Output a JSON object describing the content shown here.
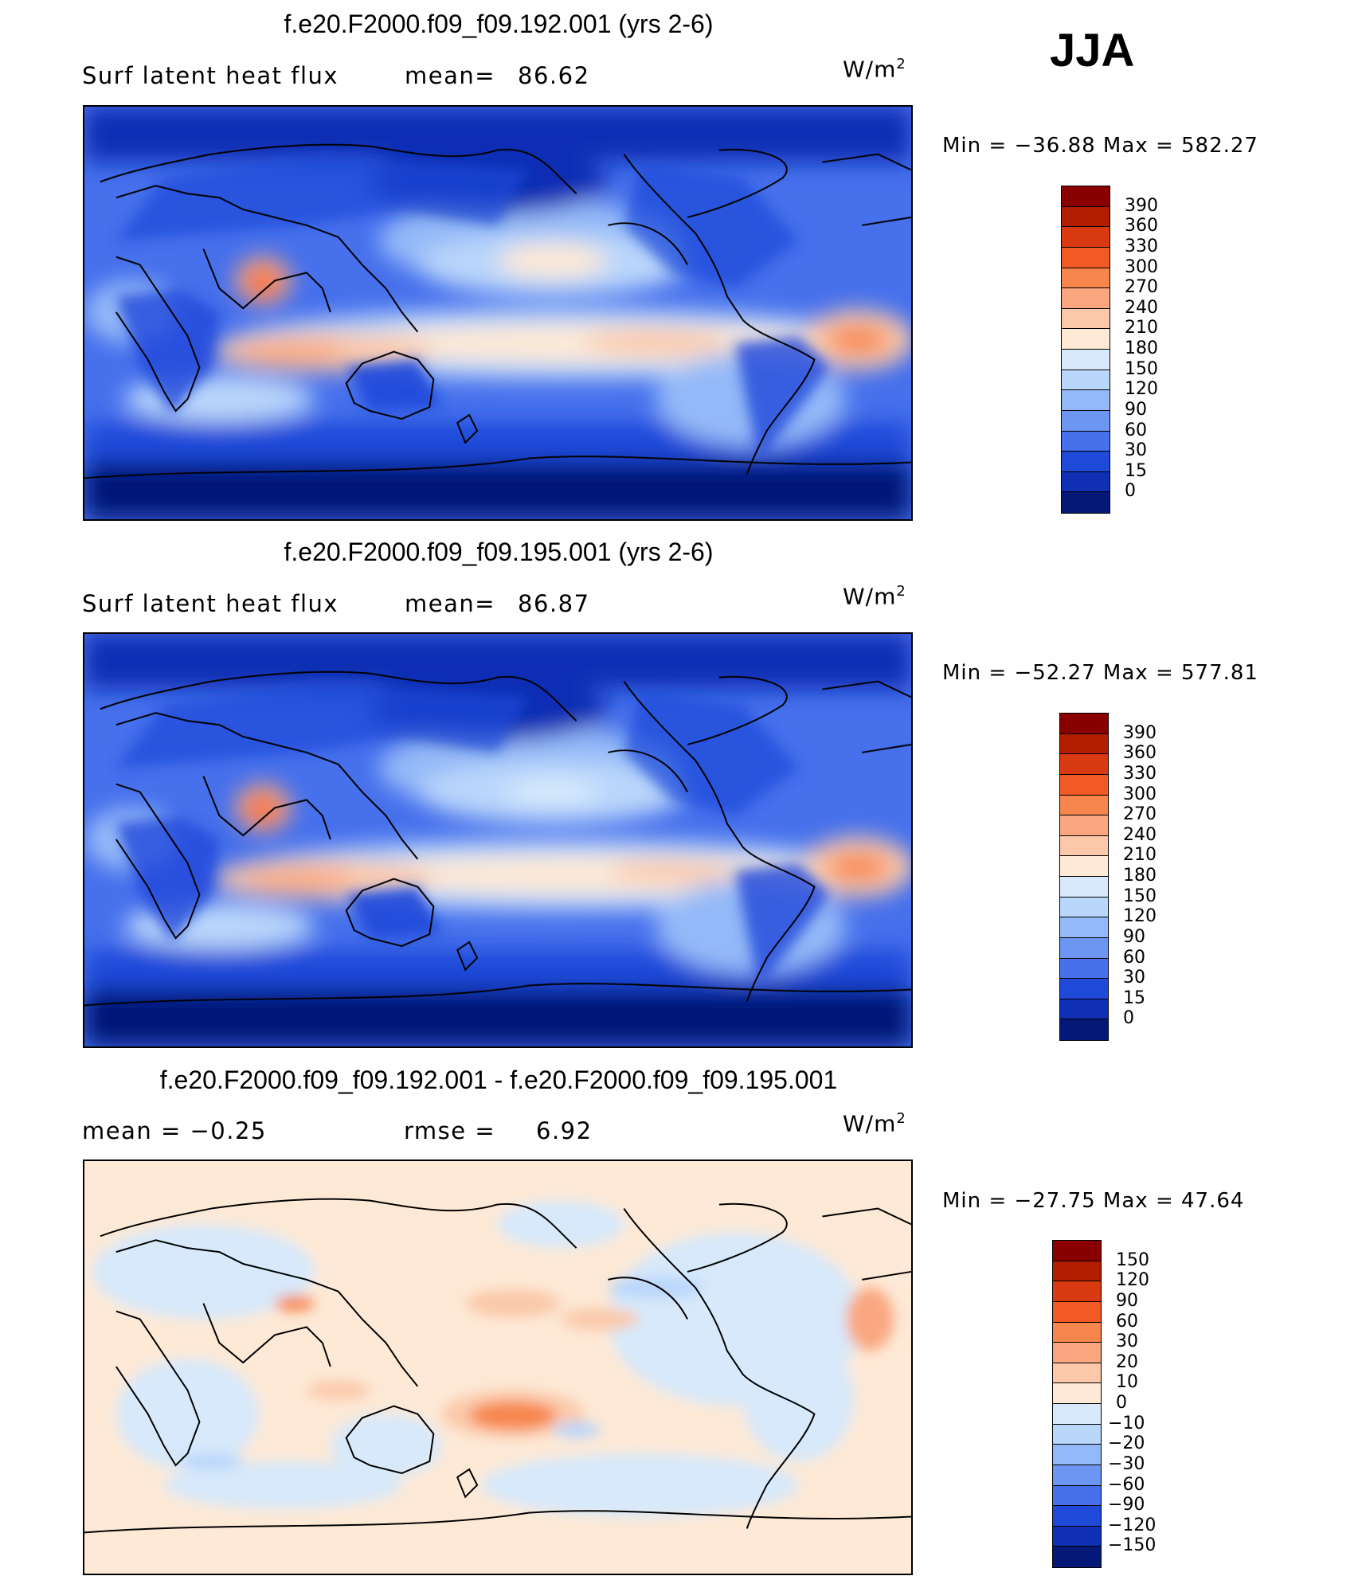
{
  "season": "JJA",
  "panels": [
    {
      "title": "f.e20.F2000.f09_f09.192.001 (yrs 2-6)",
      "left_label": "Surf  latent  heat  flux",
      "stat_label": "mean=",
      "stat_value": "86.62",
      "units_base": "W/m",
      "units_exp": "2",
      "min_label": "Min  =  −36.88  Max  =  582.27",
      "levels": [
        "390",
        "360",
        "330",
        "300",
        "270",
        "240",
        "210",
        "180",
        "150",
        "120",
        "90",
        "60",
        "30",
        "15",
        "0"
      ],
      "colors": [
        "#8a0000",
        "#b31e00",
        "#d93a12",
        "#f25a25",
        "#f7864d",
        "#faa780",
        "#fbc9aa",
        "#fde9d6",
        "#d7e9fb",
        "#b9d6fb",
        "#94b9f8",
        "#6d95f2",
        "#4670ec",
        "#1f49d9",
        "#0f2fb4",
        "#041877"
      ]
    },
    {
      "title": "f.e20.F2000.f09_f09.195.001 (yrs 2-6)",
      "left_label": "Surf  latent  heat  flux",
      "stat_label": "mean=",
      "stat_value": "86.87",
      "units_base": "W/m",
      "units_exp": "2",
      "min_label": "Min  =  −52.27  Max  =  577.81",
      "levels": [
        "390",
        "360",
        "330",
        "300",
        "270",
        "240",
        "210",
        "180",
        "150",
        "120",
        "90",
        "60",
        "30",
        "15",
        "0"
      ],
      "colors": [
        "#8a0000",
        "#b31e00",
        "#d93a12",
        "#f25a25",
        "#f7864d",
        "#faa780",
        "#fbc9aa",
        "#fde9d6",
        "#d7e9fb",
        "#b9d6fb",
        "#94b9f8",
        "#6d95f2",
        "#4670ec",
        "#1f49d9",
        "#0f2fb4",
        "#041877"
      ]
    },
    {
      "title": "f.e20.F2000.f09_f09.192.001 - f.e20.F2000.f09_f09.195.001",
      "left_label": "mean  =     −0.25",
      "stat_label": "rmse  =",
      "stat_value": "6.92",
      "units_base": "W/m",
      "units_exp": "2",
      "min_label": "Min  =  −27.75  Max  =    47.64",
      "levels": [
        "150",
        "120",
        "90",
        "60",
        "30",
        "20",
        "10",
        "0",
        "−10",
        "−20",
        "−30",
        "−60",
        "−90",
        "−120",
        "−150"
      ],
      "colors": [
        "#8a0000",
        "#b31e00",
        "#d93a12",
        "#f25a25",
        "#f7864d",
        "#faa780",
        "#fbc9aa",
        "#fde9d6",
        "#d7e9fb",
        "#b9d6fb",
        "#94b9f8",
        "#6d95f2",
        "#4670ec",
        "#1f49d9",
        "#0f2fb4",
        "#041877"
      ]
    }
  ]
}
